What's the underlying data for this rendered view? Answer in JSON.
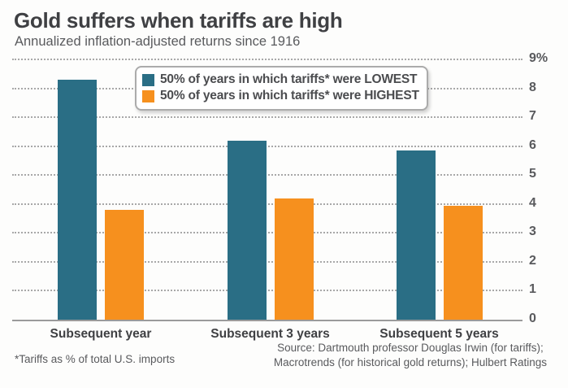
{
  "header": {
    "title": "Gold suffers when tariffs are high",
    "subtitle": "Annualized inflation-adjusted returns since 1916"
  },
  "chart_data": {
    "type": "bar",
    "categories": [
      "Subsequent year",
      "Subsequent 3 years",
      "Subsequent 5 years"
    ],
    "series": [
      {
        "name": "50% of years in which tariffs* were LOWEST",
        "color": "#2a6e85",
        "values": [
          8.3,
          6.2,
          5.85
        ]
      },
      {
        "name": "50% of years in which tariffs* were HIGHEST",
        "color": "#f6901e",
        "values": [
          3.8,
          4.2,
          3.95
        ]
      }
    ],
    "title": "Gold suffers when tariffs are high",
    "subtitle": "Annualized inflation-adjusted returns since 1916",
    "xlabel": "",
    "ylabel": "",
    "ylim": [
      0,
      9
    ],
    "y_tick_labels": [
      "0",
      "1",
      "2",
      "3",
      "4",
      "5",
      "6",
      "7",
      "8",
      "9%"
    ],
    "grid": "horizontal-dotted, zero-line solid",
    "legend_position": "top-center-inside"
  },
  "footer": {
    "footnote": "*Tariffs as % of total U.S. imports",
    "source_line1": "Source: Dartmouth professor Douglas Irwin (for tariffs);",
    "source_line2": "Macrotrends (for historical gold returns); Hulbert Ratings"
  }
}
